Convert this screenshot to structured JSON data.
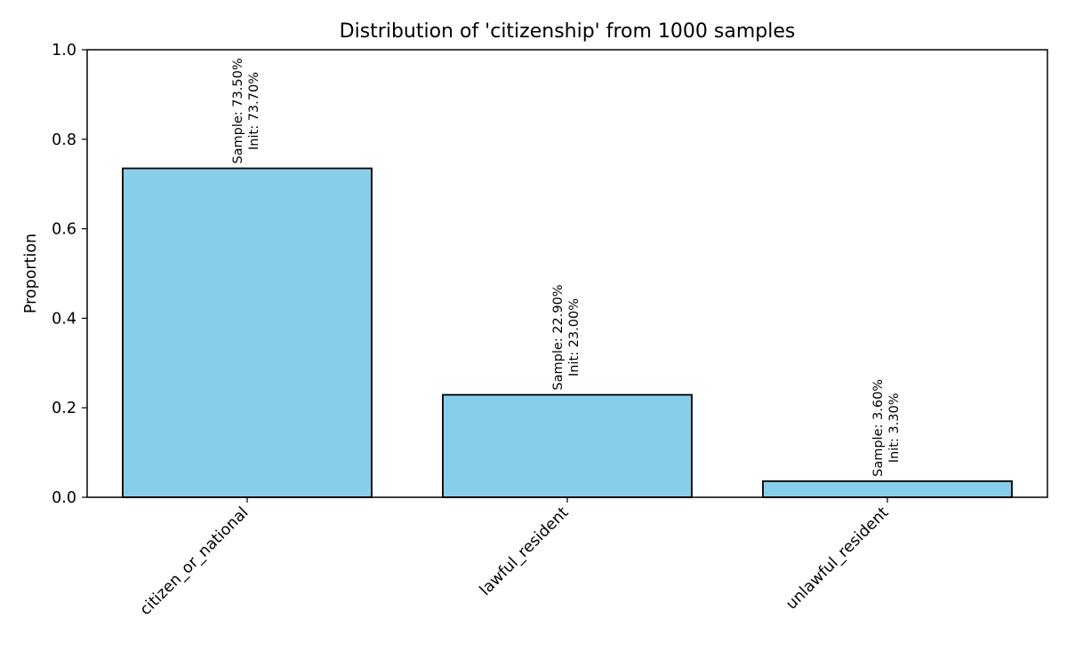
{
  "chart_data": {
    "type": "bar",
    "title": "Distribution of 'citizenship' from 1000 samples",
    "xlabel": "",
    "ylabel": "Proportion",
    "ylim": [
      0,
      1.0
    ],
    "yticks": [
      0.0,
      0.2,
      0.4,
      0.6,
      0.8,
      1.0
    ],
    "ytick_labels": [
      "0.0",
      "0.2",
      "0.4",
      "0.6",
      "0.8",
      "1.0"
    ],
    "categories": [
      "citizen_or_national",
      "lawful_resident",
      "unlawful_resident"
    ],
    "values": [
      0.735,
      0.229,
      0.036
    ],
    "annotations": [
      {
        "line1": "Sample: 73.50%",
        "line2": "Init: 73.70%"
      },
      {
        "line1": "Sample: 22.90%",
        "line2": "Init: 23.00%"
      },
      {
        "line1": "Sample: 3.60%",
        "line2": "Init: 3.30%"
      }
    ],
    "colors": {
      "bar_fill": "#87ceeb",
      "bar_edge": "#000000"
    },
    "grid": false,
    "legend": "none"
  }
}
